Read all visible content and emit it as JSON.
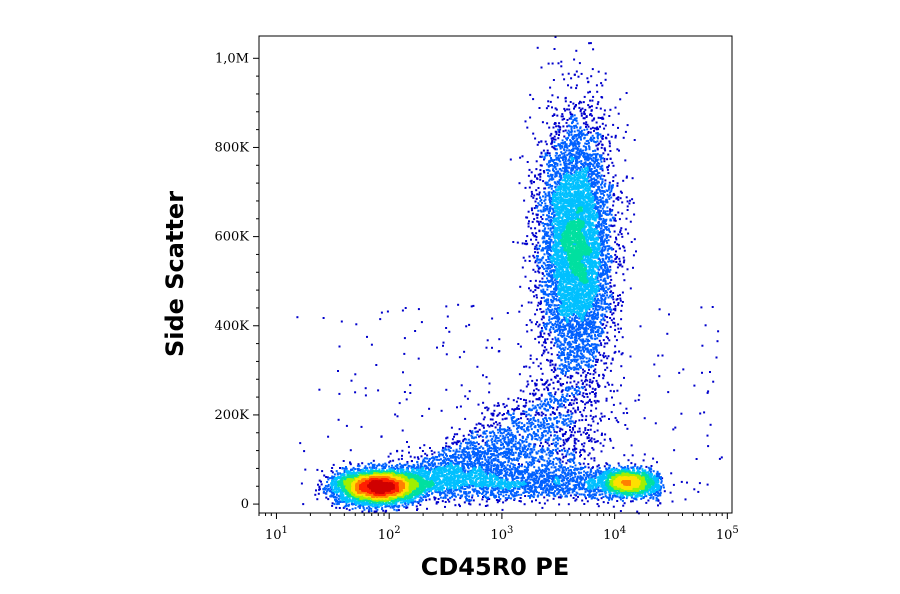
{
  "chart_data": {
    "type": "scatter",
    "subtype": "flow-cytometry-density-dot-plot",
    "title": "",
    "xlabel": "CD45R0 PE",
    "ylabel": "Side Scatter",
    "x_scale": "log",
    "xlim": [
      7,
      110000
    ],
    "ylim": [
      -20000,
      1050000
    ],
    "x_ticks": [
      {
        "base": "10",
        "exp": "1",
        "value": 10
      },
      {
        "base": "10",
        "exp": "2",
        "value": 100
      },
      {
        "base": "10",
        "exp": "3",
        "value": 1000
      },
      {
        "base": "10",
        "exp": "4",
        "value": 10000
      },
      {
        "base": "10",
        "exp": "5",
        "value": 100000
      }
    ],
    "y_ticks": [
      {
        "label": "0",
        "value": 0
      },
      {
        "label": "200K",
        "value": 200000
      },
      {
        "label": "400K",
        "value": 400000
      },
      {
        "label": "600K",
        "value": 600000
      },
      {
        "label": "800K",
        "value": 800000
      },
      {
        "label": "1,0M",
        "value": 1000000
      }
    ],
    "grid": false,
    "legend": "none",
    "colormap": [
      "#0000cc",
      "#0060ff",
      "#00c0ff",
      "#00e0a0",
      "#a0f000",
      "#ffe000",
      "#ff8000",
      "#ff2000",
      "#d00000"
    ],
    "populations": [
      {
        "x_center": 80,
        "x_log_sd": 0.17,
        "y_center": 40000,
        "y_sd": 18000,
        "count": 5000
      },
      {
        "x_center": 4500,
        "x_log_sd": 0.16,
        "y_center": 580000,
        "y_sd": 140000,
        "count": 7000
      },
      {
        "x_center": 13000,
        "x_log_sd": 0.12,
        "y_center": 50000,
        "y_sd": 15000,
        "count": 1500
      }
    ]
  }
}
